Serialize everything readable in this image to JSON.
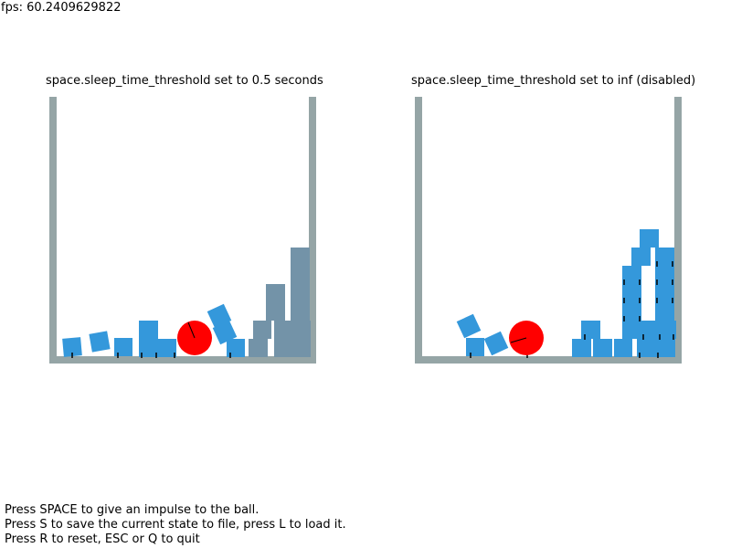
{
  "fps_label": "fps: 60.2409629822",
  "panels": {
    "left": {
      "title": "space.sleep_time_threshold set to 0.5 seconds"
    },
    "right": {
      "title": "space.sleep_time_threshold set to inf (disabled)"
    }
  },
  "instructions": [
    "Press SPACE to give an impulse to the ball.",
    "Press S to save the current state to file, press L to load it.",
    "Press R to reset, ESC or Q to quit"
  ],
  "colors": {
    "wall": "#95a5a6",
    "box_awake": "#3498db",
    "box_sleeping": "#7393a8",
    "ball": "#ff0000",
    "background": "#ffffff"
  }
}
